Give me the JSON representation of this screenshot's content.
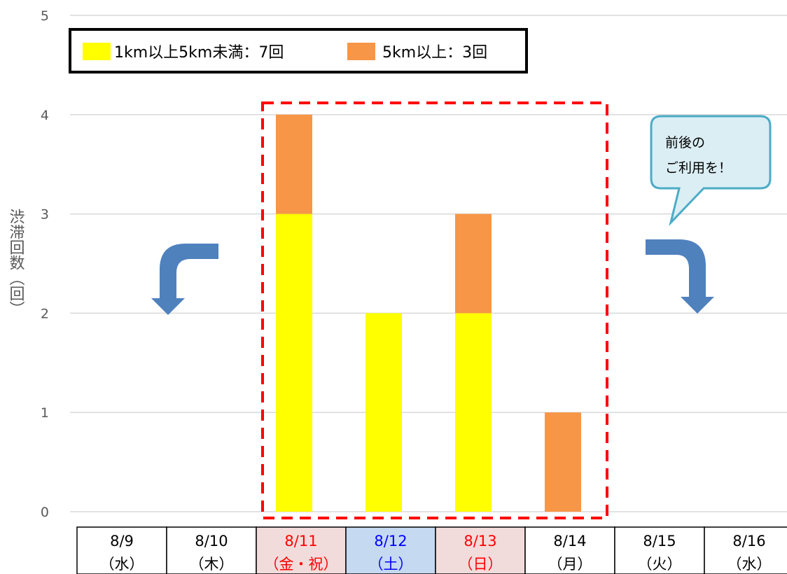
{
  "chart_data": {
    "type": "bar",
    "stacked": true,
    "categories": [
      "8/9",
      "8/10",
      "8/11",
      "8/12",
      "8/13",
      "8/14",
      "8/15",
      "8/16"
    ],
    "category_days": [
      "（水）",
      "（木）",
      "（金・祝）",
      "（土）",
      "（日）",
      "（月）",
      "（火）",
      "（水）"
    ],
    "category_styles": [
      {
        "color": "#000000",
        "background": "#ffffff"
      },
      {
        "color": "#000000",
        "background": "#ffffff"
      },
      {
        "color": "#ff0000",
        "background": "#f2dcdb"
      },
      {
        "color": "#0000ff",
        "background": "#c5d9f1"
      },
      {
        "color": "#ff0000",
        "background": "#f2dcdb"
      },
      {
        "color": "#000000",
        "background": "#ffffff"
      },
      {
        "color": "#000000",
        "background": "#ffffff"
      },
      {
        "color": "#000000",
        "background": "#ffffff"
      }
    ],
    "series": [
      {
        "name": "1km以上5km未満：7回",
        "color": "#ffff00",
        "values": [
          0,
          0,
          3,
          2,
          2,
          0,
          0,
          0
        ]
      },
      {
        "name": "5km以上：3回",
        "color": "#f79646",
        "values": [
          0,
          0,
          1,
          0,
          1,
          1,
          0,
          0
        ]
      }
    ],
    "title": "",
    "ylabel": "渋滞回数（回）",
    "xlabel": "",
    "ylim": [
      0,
      5
    ],
    "yticks": [
      0,
      1,
      2,
      3,
      4,
      5
    ],
    "grid": true,
    "legend_position": "top-left",
    "annotations": {
      "callout_lines": [
        "前後の",
        "ご利用を！"
      ],
      "callout_fill": "#dbeef4",
      "callout_stroke": "#4bacc6",
      "arrow_color": "#4f81bd",
      "highlight_box_color": "#ff0000"
    }
  }
}
